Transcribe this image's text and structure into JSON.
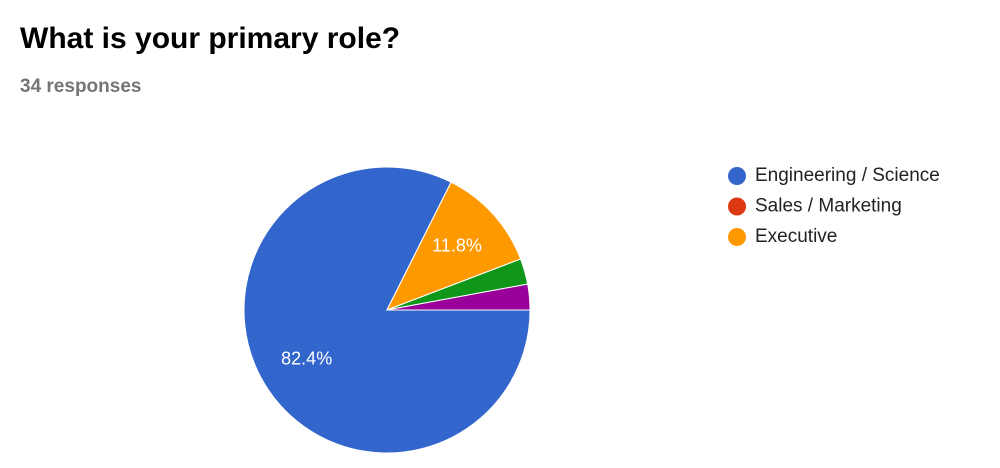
{
  "chart_data": {
    "type": "pie",
    "title": "What is your primary role?",
    "subtitle": "34 responses",
    "categories": [
      "Engineering / Science",
      "Sales / Marketing",
      "Executive",
      null,
      null
    ],
    "values": [
      82.4,
      0,
      11.8,
      2.9,
      2.9
    ],
    "value_labels": [
      "82.4%",
      null,
      "11.8%",
      null,
      null
    ],
    "colors": [
      "#3366cc",
      "#dc3912",
      "#ff9900",
      "#109618",
      "#990099"
    ],
    "legend": "right"
  }
}
